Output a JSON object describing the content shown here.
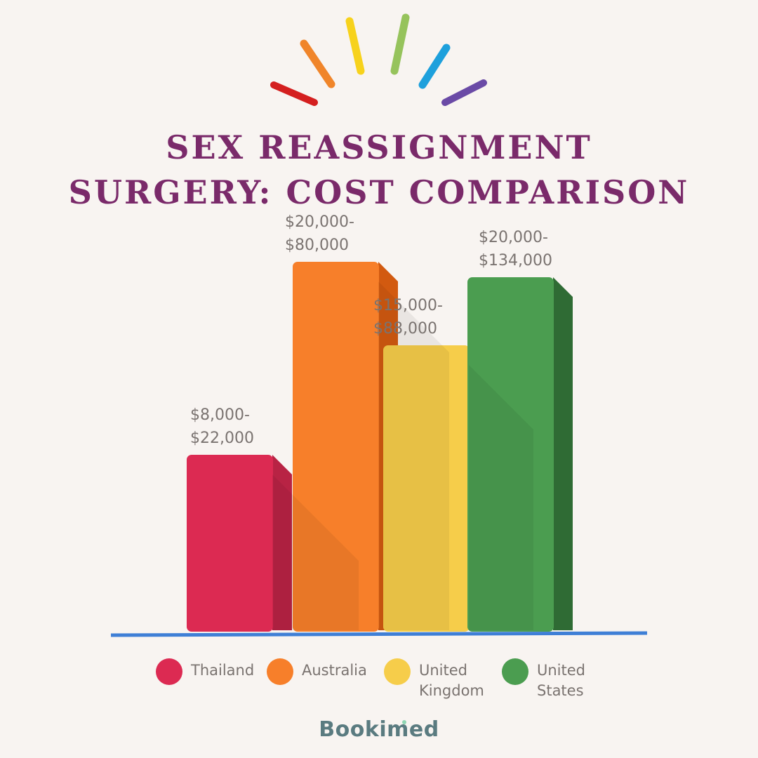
{
  "title_lines": [
    "SEX REASSIGNMENT",
    "SURGERY: COST COMPARISON"
  ],
  "brand": "Bookimed",
  "colors": {
    "background": "#f8f4f1",
    "title": "#7a2a6a",
    "baseline": "#3f7fd6",
    "value_label": "#7a7370",
    "rays": [
      "#d41f1f",
      "#f0852a",
      "#f7d21c",
      "#96c35c",
      "#1ea0dc",
      "#6a4aa6"
    ]
  },
  "chart_data": {
    "type": "bar",
    "title": "SEX REASSIGNMENT SURGERY: COST COMPARISON",
    "categories": [
      "Thailand",
      "Australia",
      "United Kingdom",
      "United States"
    ],
    "series": [
      {
        "values": [
          8000,
          20000,
          15000,
          20000
        ]
      },
      {
        "values": [
          22000,
          80000,
          88000,
          134000
        ]
      }
    ],
    "value_labels": [
      [
        "$8,000-",
        "$22,000"
      ],
      [
        "$20,000-",
        "$80,000"
      ],
      [
        "$15,000-",
        "$88,000"
      ],
      [
        "$20,000-",
        "$134,000"
      ]
    ],
    "bar_colors": [
      {
        "front": "#dc2a52",
        "side": "#b82344"
      },
      {
        "front": "#f77f2a",
        "side": "#d25a10"
      },
      {
        "front": "#f6cd4a",
        "side": "#d6ae36"
      },
      {
        "front": "#4b9d50",
        "side": "#2f6b34"
      }
    ],
    "legend": [
      {
        "label": "Thailand",
        "color": "#dc2a52"
      },
      {
        "label": "Australia",
        "color": "#f77f2a"
      },
      {
        "label": "United Kingdom",
        "color": "#f6cd4a"
      },
      {
        "label": "United States",
        "color": "#4b9d50"
      }
    ],
    "legend_position": "bottom",
    "grid": false
  }
}
